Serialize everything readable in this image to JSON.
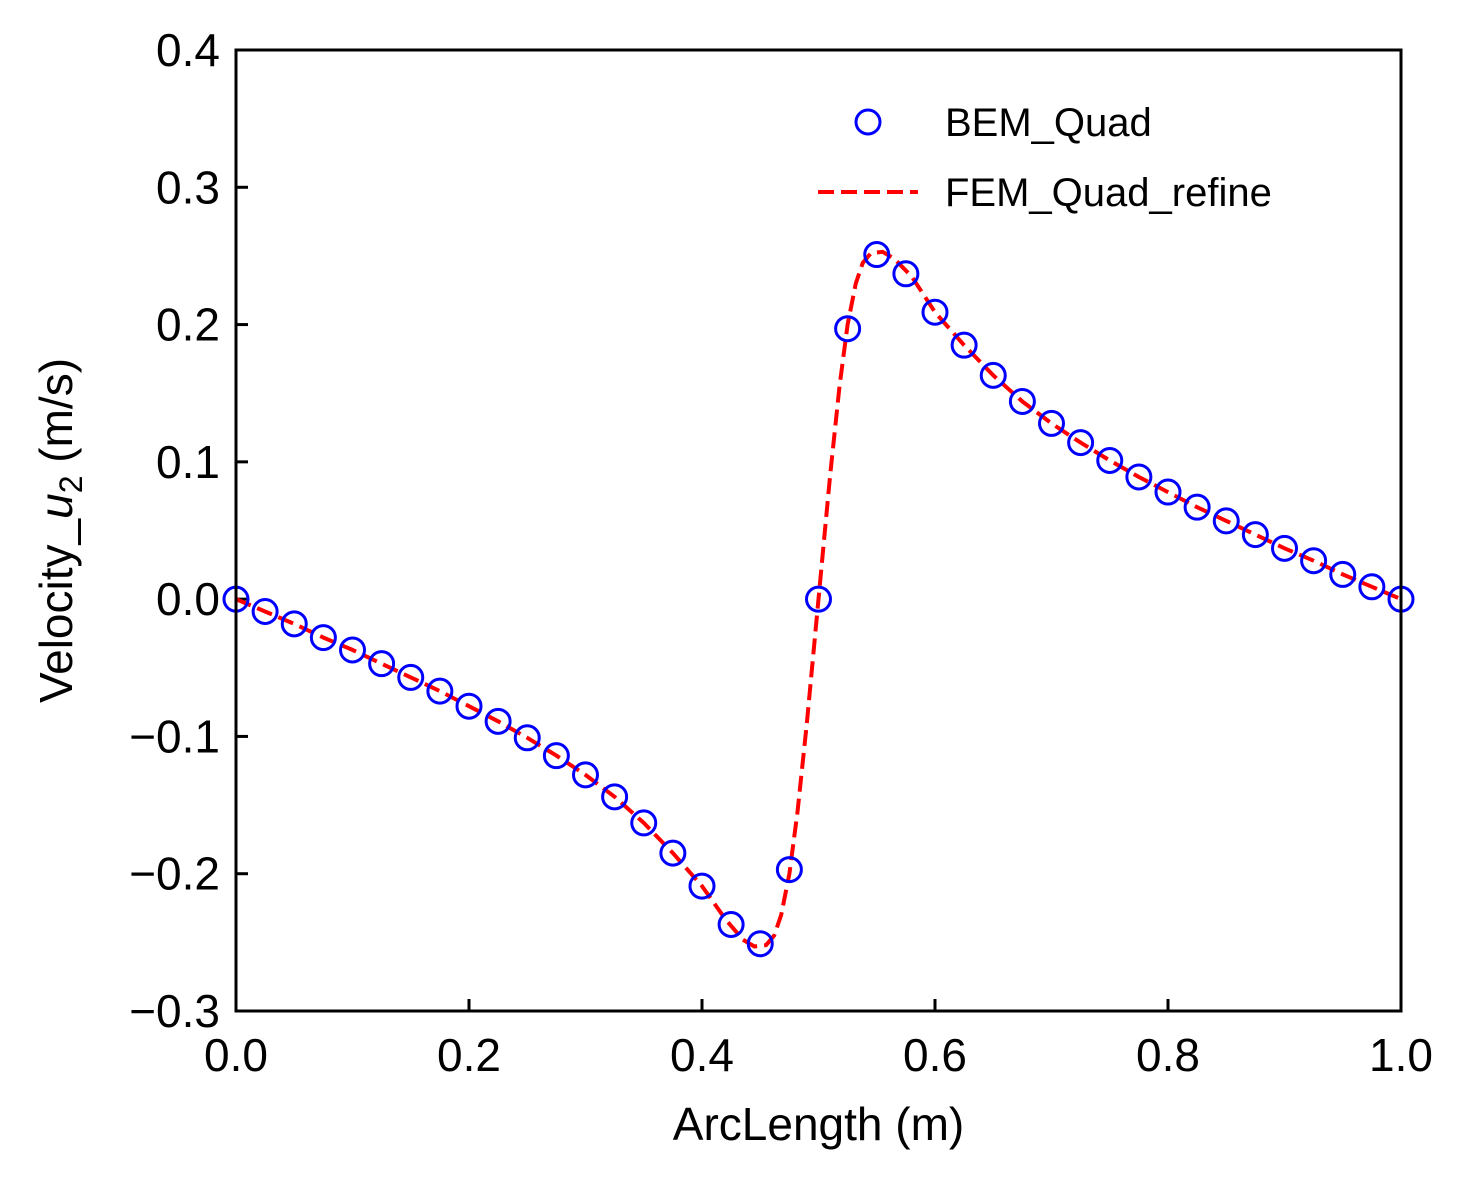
{
  "chart_data": {
    "type": "line",
    "title": "",
    "xlabel": "ArcLength (m)",
    "ylabel": {
      "prefix": "Velocity_",
      "symbol": "u",
      "subscript": "2",
      "suffix": " (m/s)"
    },
    "xlim": [
      0.0,
      1.0
    ],
    "ylim": [
      -0.3,
      0.4
    ],
    "x_ticks": [
      0.0,
      0.2,
      0.4,
      0.6,
      0.8,
      1.0
    ],
    "x_tick_labels": [
      "0.0",
      "0.2",
      "0.4",
      "0.6",
      "0.8",
      "1.0"
    ],
    "y_ticks": [
      -0.3,
      -0.2,
      -0.1,
      0.0,
      0.1,
      0.2,
      0.3,
      0.4
    ],
    "y_tick_labels": [
      "−0.3",
      "−0.2",
      "−0.1",
      "0.0",
      "0.1",
      "0.2",
      "0.3",
      "0.4"
    ],
    "grid": false,
    "legend_position": "top-right",
    "series": [
      {
        "name": "BEM_Quad",
        "style": "markers",
        "marker": "open-circle",
        "color": "#0000ff",
        "x": [
          0.0,
          0.025,
          0.05,
          0.075,
          0.1,
          0.125,
          0.15,
          0.175,
          0.2,
          0.225,
          0.25,
          0.275,
          0.3,
          0.325,
          0.35,
          0.375,
          0.4,
          0.425,
          0.45,
          0.475,
          0.5,
          0.525,
          0.55,
          0.575,
          0.6,
          0.625,
          0.65,
          0.675,
          0.7,
          0.725,
          0.75,
          0.775,
          0.8,
          0.825,
          0.85,
          0.875,
          0.9,
          0.925,
          0.95,
          0.975,
          1.0
        ],
        "y": [
          0.0,
          -0.009,
          -0.018,
          -0.028,
          -0.037,
          -0.047,
          -0.057,
          -0.067,
          -0.078,
          -0.089,
          -0.101,
          -0.114,
          -0.128,
          -0.144,
          -0.163,
          -0.185,
          -0.209,
          -0.237,
          -0.251,
          -0.197,
          0.0,
          0.197,
          0.251,
          0.237,
          0.209,
          0.185,
          0.163,
          0.144,
          0.128,
          0.114,
          0.101,
          0.089,
          0.078,
          0.067,
          0.057,
          0.047,
          0.037,
          0.028,
          0.018,
          0.009,
          0.0
        ]
      },
      {
        "name": "FEM_Quad_refine",
        "style": "dashed-line",
        "color": "#ff0000",
        "x": [
          0.0,
          0.025,
          0.05,
          0.075,
          0.1,
          0.125,
          0.15,
          0.175,
          0.2,
          0.225,
          0.25,
          0.275,
          0.3,
          0.325,
          0.35,
          0.375,
          0.4,
          0.42,
          0.435,
          0.445,
          0.455,
          0.462,
          0.468,
          0.475,
          0.482,
          0.49,
          0.5,
          0.51,
          0.518,
          0.525,
          0.532,
          0.538,
          0.545,
          0.555,
          0.565,
          0.58,
          0.6,
          0.625,
          0.65,
          0.675,
          0.7,
          0.725,
          0.75,
          0.775,
          0.8,
          0.825,
          0.85,
          0.875,
          0.9,
          0.925,
          0.95,
          0.975,
          1.0
        ],
        "y": [
          0.0,
          -0.009,
          -0.018,
          -0.028,
          -0.037,
          -0.047,
          -0.057,
          -0.067,
          -0.078,
          -0.089,
          -0.101,
          -0.114,
          -0.128,
          -0.144,
          -0.163,
          -0.185,
          -0.209,
          -0.233,
          -0.248,
          -0.253,
          -0.252,
          -0.245,
          -0.23,
          -0.2,
          -0.155,
          -0.09,
          0.0,
          0.09,
          0.155,
          0.2,
          0.23,
          0.245,
          0.252,
          0.253,
          0.248,
          0.235,
          0.209,
          0.185,
          0.163,
          0.144,
          0.128,
          0.114,
          0.101,
          0.089,
          0.078,
          0.067,
          0.057,
          0.047,
          0.037,
          0.028,
          0.018,
          0.009,
          0.0
        ]
      }
    ]
  }
}
